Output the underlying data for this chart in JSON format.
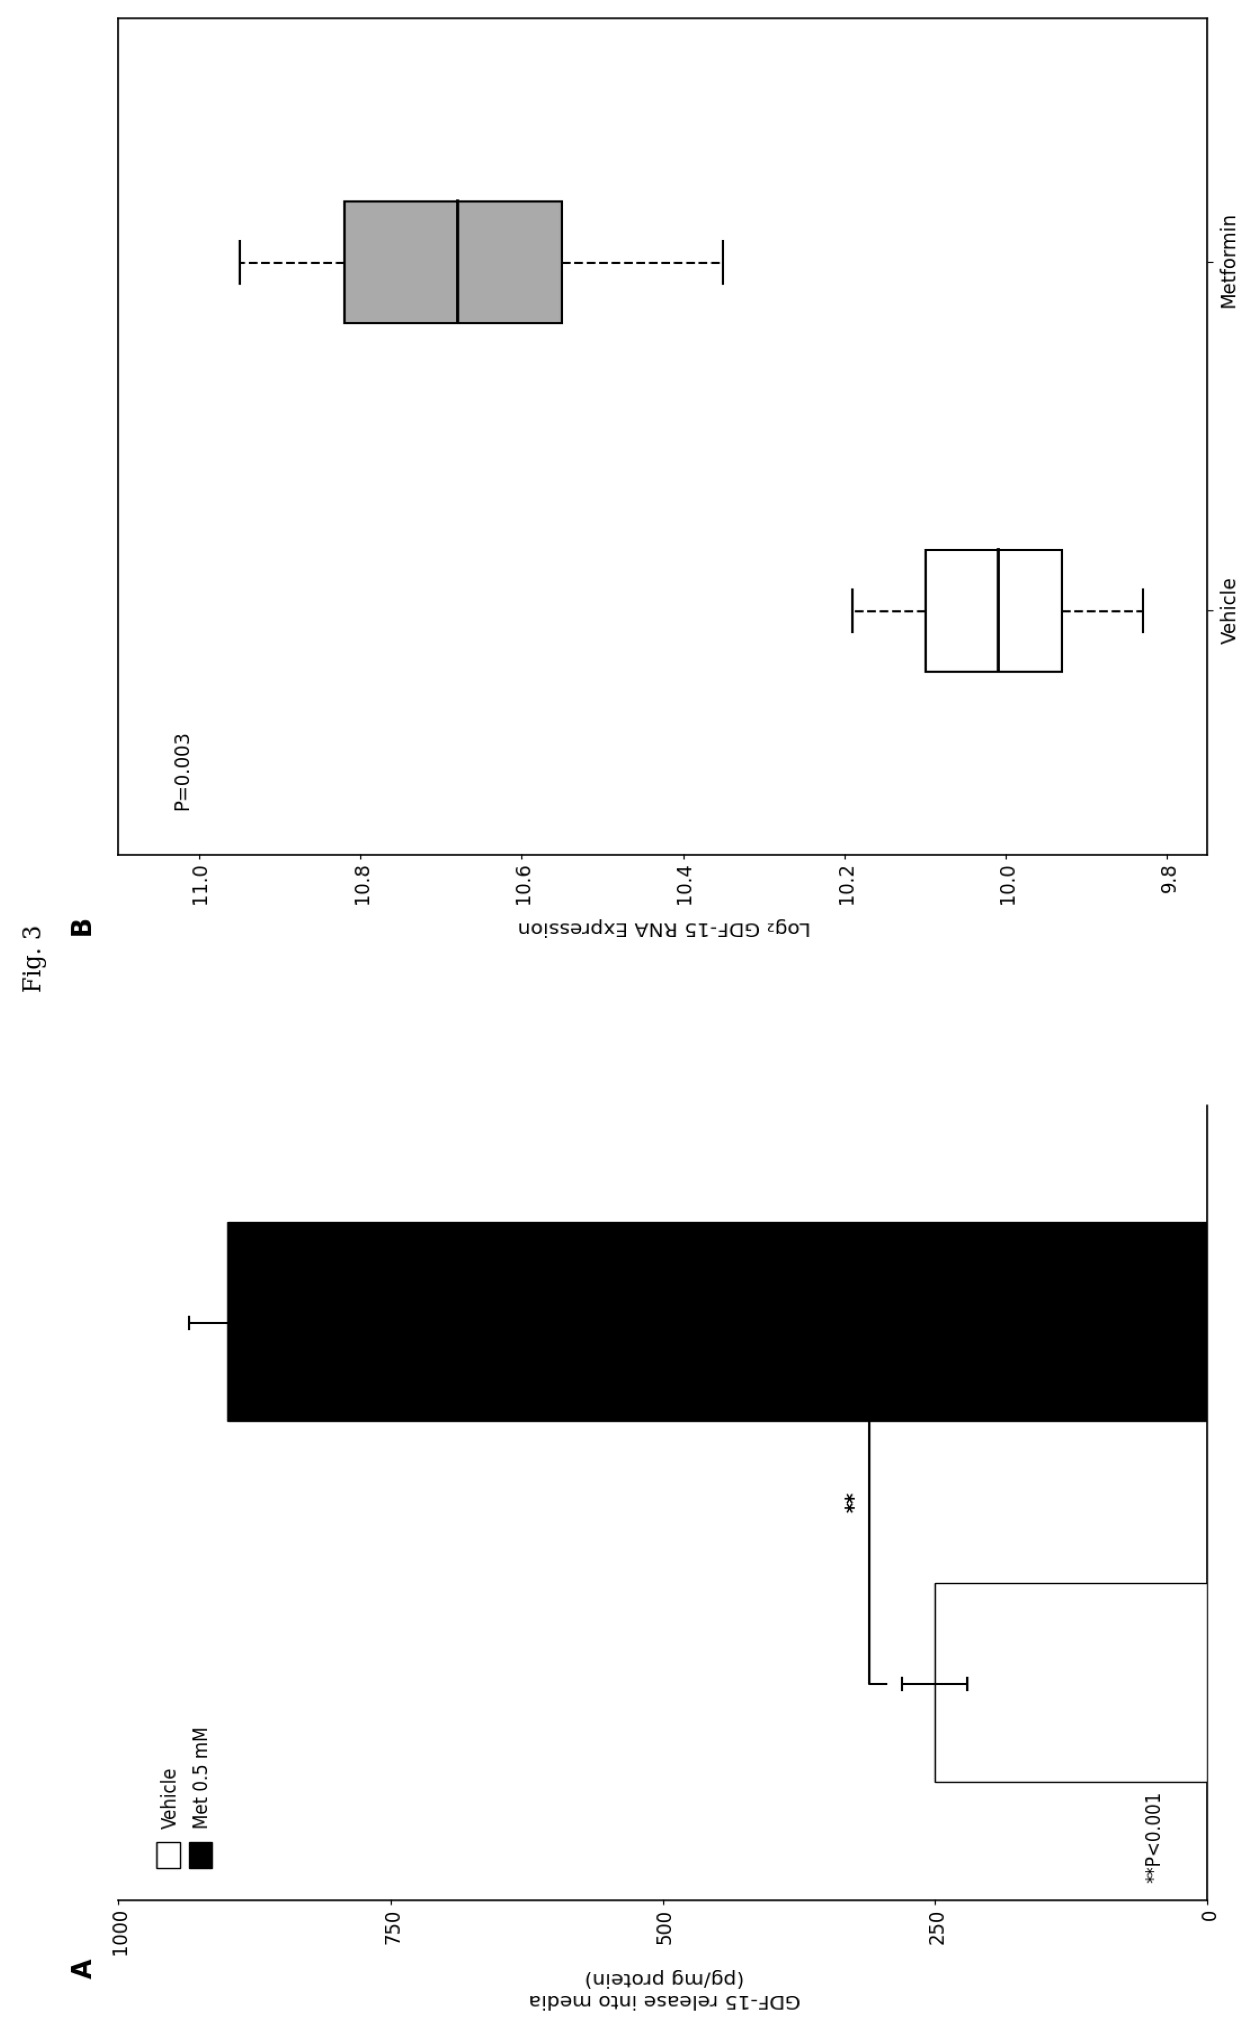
{
  "title": "Fig. 3",
  "panel_a": {
    "label": "A",
    "bar_vehicle_value": 250,
    "bar_vehicle_error": 30,
    "bar_met_value": 900,
    "bar_met_error": 35,
    "bar_vehicle_color": "white",
    "bar_met_color": "black",
    "bar_edgecolor": "black",
    "ylabel": "GDF-15 release into media\n(pg/mg protein)",
    "ylim": [
      0,
      1000
    ],
    "yticks": [
      0,
      250,
      500,
      750,
      1000
    ],
    "legend_labels": [
      "Vehicle",
      "Met 0.5 mM"
    ],
    "legend_colors": [
      "white",
      "black"
    ],
    "significance_text": "**",
    "annotation_text": "**P<0.001",
    "bar_width": 0.55
  },
  "panel_b": {
    "label": "B",
    "ylabel": "Log₂ GDF-15 RNA Expression",
    "ylim": [
      9.75,
      11.1
    ],
    "yticks": [
      9.8,
      10.0,
      10.2,
      10.4,
      10.6,
      10.8,
      11.0
    ],
    "pvalue_text": "P=0.003",
    "metformin_box": {
      "q1": 10.55,
      "median": 10.68,
      "q3": 10.82,
      "whisker_low": 10.35,
      "whisker_high": 10.95,
      "color": "#aaaaaa",
      "label": "Metformin"
    },
    "vehicle_box": {
      "q1": 9.93,
      "median": 10.01,
      "q3": 10.1,
      "whisker_low": 9.83,
      "whisker_high": 10.19,
      "color": "white",
      "label": "Vehicle"
    }
  }
}
